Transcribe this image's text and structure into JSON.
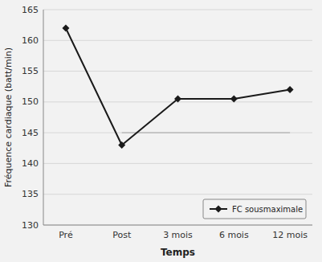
{
  "chart_data": {
    "type": "line",
    "categories": [
      "Pré",
      "Post",
      "3 mois",
      "6 mois",
      "12 mois"
    ],
    "series": [
      {
        "name": "FC sousmaximale",
        "color": "#1a1a1a",
        "marker": "diamond",
        "values": [
          162,
          143,
          150.5,
          150.5,
          152
        ]
      }
    ],
    "xlabel": "Temps",
    "ylabel": "Fréquence cardiaque (batt/min)",
    "ylim": [
      130,
      165
    ],
    "yticks": [
      130,
      135,
      140,
      145,
      150,
      155,
      160,
      165
    ],
    "grid": true,
    "legend": "lower right",
    "reference_line": {
      "value": 145,
      "from": "Post",
      "to": "12 mois",
      "color": "#b0b0b0"
    }
  }
}
